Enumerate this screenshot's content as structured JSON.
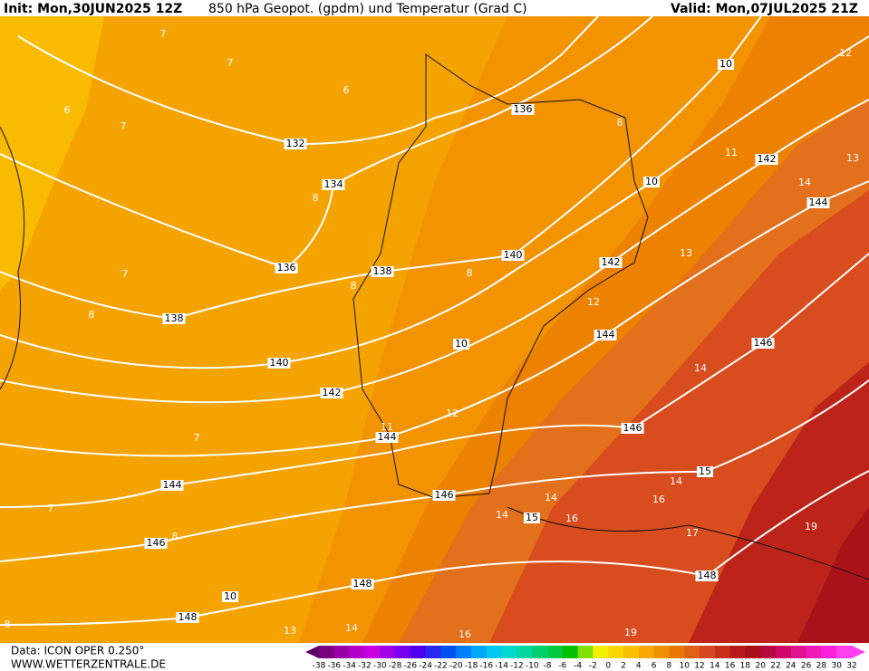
{
  "header": {
    "init": "Init: Mon,30JUN2025 12Z",
    "title": "850 hPa Geopot. (gpdm) und Temperatur (Grad C)",
    "valid": "Valid: Mon,07JUL2025 21Z"
  },
  "map": {
    "geopotential_labels": [
      132,
      134,
      136,
      136,
      138,
      138,
      140,
      140,
      142,
      142,
      142,
      144,
      144,
      144,
      144,
      146,
      146,
      146,
      146,
      148,
      148,
      148,
      10,
      10,
      10,
      10,
      15,
      15
    ],
    "temperature_labels": [
      7,
      7,
      6,
      7,
      6,
      8,
      7,
      8,
      8,
      8,
      8,
      11,
      13,
      12,
      14,
      13,
      12,
      14,
      11,
      12,
      7,
      7,
      8,
      14,
      14,
      16,
      16,
      14,
      17,
      19,
      13,
      14,
      16,
      19,
      8
    ]
  },
  "legend": {
    "labels": [
      -38,
      -36,
      -34,
      -32,
      -30,
      -28,
      -26,
      -24,
      -22,
      -20,
      -18,
      -16,
      -14,
      -12,
      -10,
      -8,
      -6,
      -4,
      -2,
      0,
      2,
      4,
      6,
      8,
      10,
      12,
      14,
      16,
      18,
      20,
      22,
      24,
      26,
      28,
      30,
      32
    ]
  },
  "footer": {
    "data": "Data: ICON OPER 0.250°",
    "site": "WWW.WETTERZENTRALE.DE"
  }
}
